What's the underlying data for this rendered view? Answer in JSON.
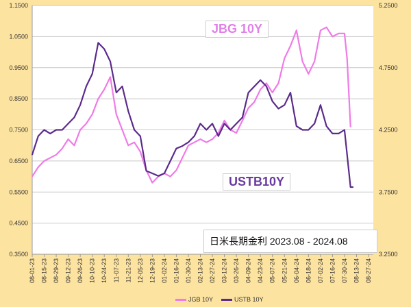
{
  "chart_data": {
    "type": "line",
    "title": "日米長期金利 2023.08 - 2024.08",
    "annotations": [
      "JBG 10Y",
      "USTB10Y"
    ],
    "x_ticks": [
      "08-01-23",
      "08-15-23",
      "08-29-23",
      "09-12-23",
      "09-26-23",
      "10-10-23",
      "10-24-23",
      "11-07-23",
      "11-21-23",
      "12-05-23",
      "12-19-23",
      "01-02-24",
      "01-16-24",
      "01-30-24",
      "02-13-24",
      "02-27-24",
      "03-12-24",
      "03-26-24",
      "04-09-24",
      "04-23-24",
      "05-07-24",
      "05-21-24",
      "06-04-24",
      "06-18-24",
      "07-02-24",
      "07-16-24",
      "07-30-24",
      "08-13-24",
      "08-27-24"
    ],
    "y_left_ticks": [
      "1.1500",
      "1.0500",
      "0.9500",
      "0.8500",
      "0.7500",
      "0.6500",
      "0.5500",
      "0.4500",
      "0.3500"
    ],
    "y_right_ticks": [
      "5.2500",
      "4.7500",
      "4.2500",
      "3.7500",
      "3.2500"
    ],
    "ylim_left": [
      0.35,
      1.15
    ],
    "ylim_right": [
      3.25,
      5.25
    ],
    "xlim": [
      "2023-08-01",
      "2024-08-27"
    ],
    "grid": "horizontal",
    "legend_position": "bottom",
    "series": [
      {
        "name": "JGB 10Y",
        "axis": "left",
        "color": "#f07ae8",
        "x": [
          "2023-08-01",
          "2023-08-08",
          "2023-08-15",
          "2023-08-22",
          "2023-08-29",
          "2023-09-05",
          "2023-09-12",
          "2023-09-19",
          "2023-09-26",
          "2023-10-03",
          "2023-10-10",
          "2023-10-17",
          "2023-10-24",
          "2023-10-31",
          "2023-11-07",
          "2023-11-14",
          "2023-11-21",
          "2023-11-28",
          "2023-12-05",
          "2023-12-12",
          "2023-12-19",
          "2023-12-26",
          "2024-01-02",
          "2024-01-09",
          "2024-01-16",
          "2024-01-23",
          "2024-01-30",
          "2024-02-06",
          "2024-02-13",
          "2024-02-20",
          "2024-02-27",
          "2024-03-05",
          "2024-03-12",
          "2024-03-19",
          "2024-03-26",
          "2024-04-02",
          "2024-04-09",
          "2024-04-16",
          "2024-04-23",
          "2024-04-30",
          "2024-05-07",
          "2024-05-14",
          "2024-05-21",
          "2024-05-28",
          "2024-06-04",
          "2024-06-11",
          "2024-06-18",
          "2024-06-25",
          "2024-07-02",
          "2024-07-09",
          "2024-07-16",
          "2024-07-23",
          "2024-07-30",
          "2024-08-02",
          "2024-08-06"
        ],
        "y": [
          0.6,
          0.63,
          0.65,
          0.66,
          0.67,
          0.69,
          0.72,
          0.7,
          0.75,
          0.77,
          0.8,
          0.85,
          0.88,
          0.92,
          0.8,
          0.75,
          0.7,
          0.71,
          0.68,
          0.62,
          0.58,
          0.6,
          0.61,
          0.6,
          0.62,
          0.66,
          0.7,
          0.71,
          0.72,
          0.71,
          0.72,
          0.74,
          0.78,
          0.75,
          0.74,
          0.78,
          0.82,
          0.84,
          0.88,
          0.9,
          0.87,
          0.9,
          0.98,
          1.02,
          1.07,
          0.97,
          0.93,
          0.97,
          1.07,
          1.08,
          1.05,
          1.06,
          1.06,
          0.98,
          0.76
        ]
      },
      {
        "name": "USTB 10Y",
        "axis": "right",
        "color": "#5b2a8c",
        "x": [
          "2023-08-01",
          "2023-08-08",
          "2023-08-15",
          "2023-08-22",
          "2023-08-29",
          "2023-09-05",
          "2023-09-12",
          "2023-09-19",
          "2023-09-26",
          "2023-10-03",
          "2023-10-10",
          "2023-10-17",
          "2023-10-24",
          "2023-10-31",
          "2023-11-07",
          "2023-11-14",
          "2023-11-21",
          "2023-11-28",
          "2023-12-05",
          "2023-12-12",
          "2023-12-19",
          "2023-12-26",
          "2024-01-02",
          "2024-01-09",
          "2024-01-16",
          "2024-01-23",
          "2024-01-30",
          "2024-02-06",
          "2024-02-13",
          "2024-02-20",
          "2024-02-27",
          "2024-03-05",
          "2024-03-12",
          "2024-03-19",
          "2024-03-26",
          "2024-04-02",
          "2024-04-09",
          "2024-04-16",
          "2024-04-23",
          "2024-04-30",
          "2024-05-07",
          "2024-05-14",
          "2024-05-21",
          "2024-05-28",
          "2024-06-04",
          "2024-06-11",
          "2024-06-18",
          "2024-06-25",
          "2024-07-02",
          "2024-07-09",
          "2024-07-16",
          "2024-07-23",
          "2024-07-30",
          "2024-08-06",
          "2024-08-09"
        ],
        "y": [
          4.05,
          4.2,
          4.25,
          4.22,
          4.25,
          4.25,
          4.3,
          4.35,
          4.45,
          4.6,
          4.7,
          4.95,
          4.9,
          4.8,
          4.55,
          4.6,
          4.4,
          4.25,
          4.2,
          3.92,
          3.9,
          3.88,
          3.9,
          4.0,
          4.1,
          4.12,
          4.15,
          4.2,
          4.3,
          4.25,
          4.3,
          4.2,
          4.3,
          4.25,
          4.3,
          4.35,
          4.55,
          4.6,
          4.65,
          4.6,
          4.48,
          4.42,
          4.45,
          4.55,
          4.28,
          4.25,
          4.25,
          4.3,
          4.45,
          4.28,
          4.22,
          4.22,
          4.25,
          3.79,
          3.79
        ]
      }
    ]
  }
}
